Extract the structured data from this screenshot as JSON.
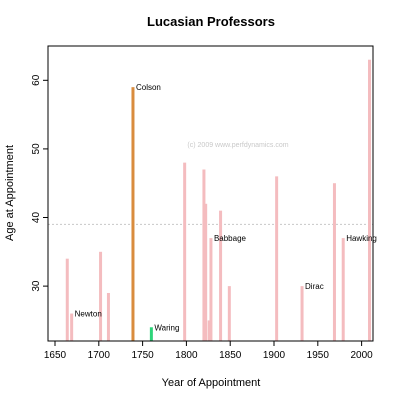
{
  "chart_data": {
    "type": "bar",
    "title": "Lucasian Professors",
    "xlabel": "Year of Appointment",
    "ylabel": "Age at Appointment",
    "xlim": [
      1642,
      2013
    ],
    "ylim": [
      22,
      65
    ],
    "xticks": [
      1650,
      1700,
      1750,
      1800,
      1850,
      1900,
      1950,
      2000
    ],
    "yticks": [
      30,
      40,
      50,
      60
    ],
    "reference_line_y": 39,
    "watermark": "(c) 2009 www.perfdynamics.com",
    "colors": {
      "default": "#f4bcbf",
      "highlight_colson": "#d98c3e",
      "highlight_waring": "#2ed47a"
    },
    "bars": [
      {
        "year": 1664,
        "age": 34
      },
      {
        "year": 1669,
        "age": 26,
        "label": "Newton"
      },
      {
        "year": 1702,
        "age": 35
      },
      {
        "year": 1711,
        "age": 29
      },
      {
        "year": 1739,
        "age": 59,
        "label": "Colson",
        "color": "highlight_colson"
      },
      {
        "year": 1760,
        "age": 24,
        "label": "Waring",
        "color": "highlight_waring"
      },
      {
        "year": 1798,
        "age": 48
      },
      {
        "year": 1820,
        "age": 47
      },
      {
        "year": 1822,
        "age": 42
      },
      {
        "year": 1826,
        "age": 25
      },
      {
        "year": 1828,
        "age": 37,
        "label": "Babbage"
      },
      {
        "year": 1839,
        "age": 41
      },
      {
        "year": 1849,
        "age": 30
      },
      {
        "year": 1903,
        "age": 46
      },
      {
        "year": 1932,
        "age": 30,
        "label": "Dirac"
      },
      {
        "year": 1969,
        "age": 45
      },
      {
        "year": 1979,
        "age": 37,
        "label": "Hawking"
      },
      {
        "year": 2009,
        "age": 63
      }
    ]
  }
}
